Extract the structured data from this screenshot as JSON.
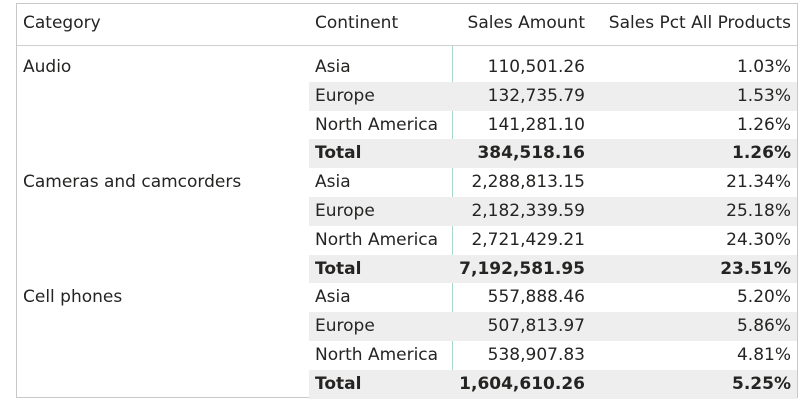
{
  "headers": {
    "category": "Category",
    "continent": "Continent",
    "sales_amount": "Sales Amount",
    "sales_pct": "Sales Pct All Products"
  },
  "groups": [
    {
      "category": "Audio",
      "rows": [
        {
          "continent": "Asia",
          "sales": "110,501.26",
          "pct": "1.03%"
        },
        {
          "continent": "Europe",
          "sales": "132,735.79",
          "pct": "1.53%"
        },
        {
          "continent": "North America",
          "sales": "141,281.10",
          "pct": "1.26%"
        },
        {
          "continent": "Total",
          "sales": "384,518.16",
          "pct": "1.26%"
        }
      ]
    },
    {
      "category": "Cameras and camcorders",
      "rows": [
        {
          "continent": "Asia",
          "sales": "2,288,813.15",
          "pct": "21.34%"
        },
        {
          "continent": "Europe",
          "sales": "2,182,339.59",
          "pct": "25.18%"
        },
        {
          "continent": "North America",
          "sales": "2,721,429.21",
          "pct": "24.30%"
        },
        {
          "continent": "Total",
          "sales": "7,192,581.95",
          "pct": "23.51%"
        }
      ]
    },
    {
      "category": "Cell phones",
      "rows": [
        {
          "continent": "Asia",
          "sales": "557,888.46",
          "pct": "5.20%"
        },
        {
          "continent": "Europe",
          "sales": "507,813.97",
          "pct": "5.86%"
        },
        {
          "continent": "North America",
          "sales": "538,907.83",
          "pct": "4.81%"
        },
        {
          "continent": "Total",
          "sales": "1,604,610.26",
          "pct": "5.25%"
        }
      ]
    }
  ]
}
